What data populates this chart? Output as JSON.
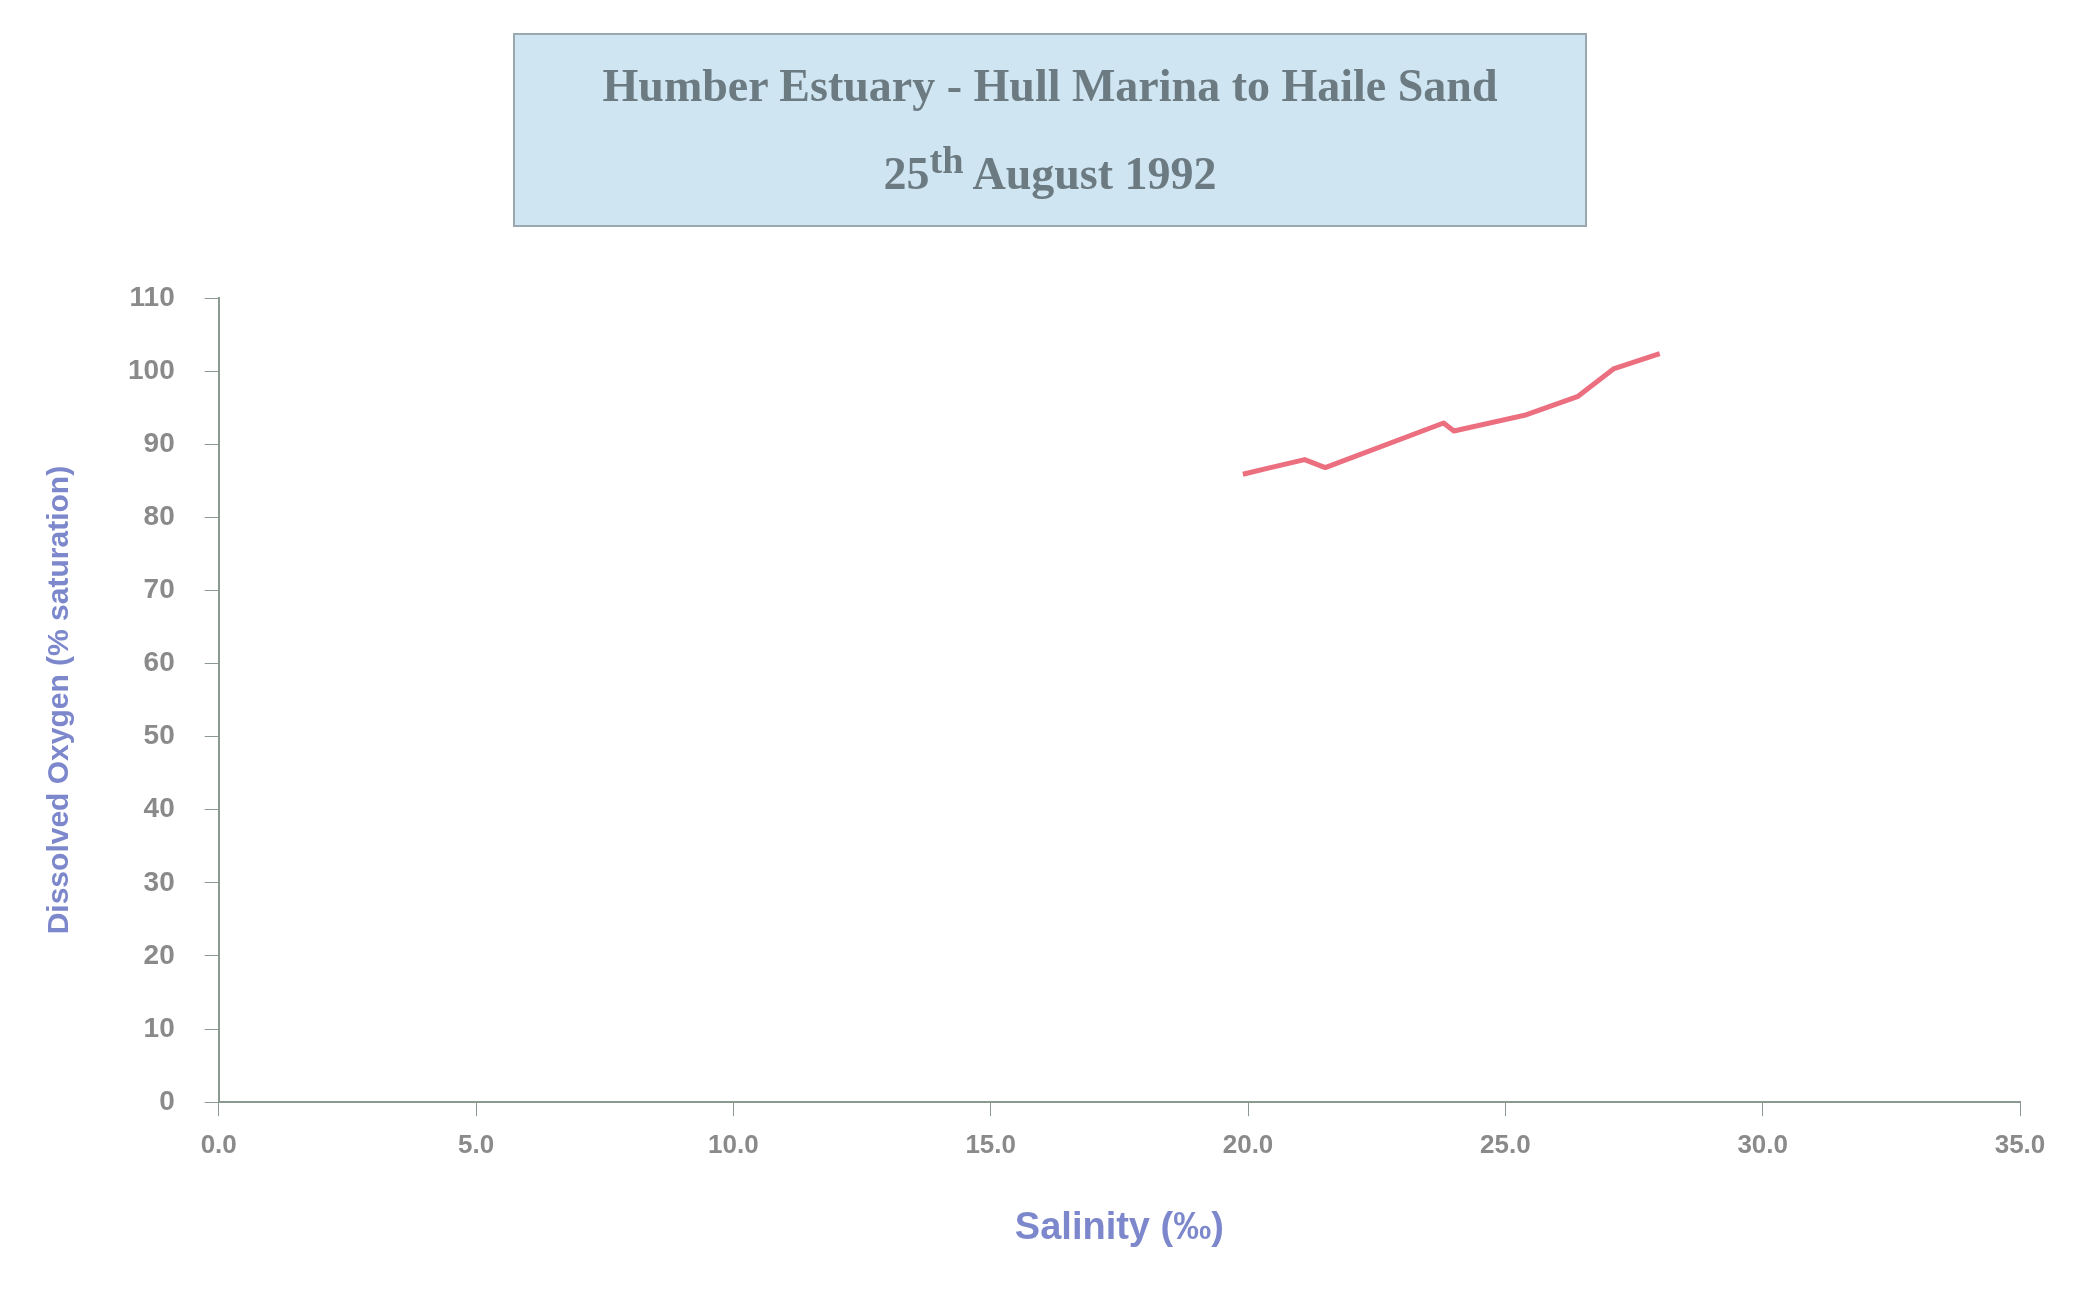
{
  "chart_data": {
    "type": "line",
    "title": "Humber Estuary - Hull Marina to Haile Sand\n25$^{th}$ August 1992",
    "xlabel": "Salinity (‰)",
    "ylabel": "Dissolved Oxygen (% saturation)",
    "x": [
      19.9,
      21.1,
      21.5,
      23.8,
      24.0,
      25.4,
      26.4,
      27.1,
      28.0
    ],
    "series": [
      {
        "color": "#ec6f80",
        "values": [
          85.9,
          87.9,
          86.8,
          92.9,
          91.8,
          94.0,
          96.5,
          100.3,
          102.4
        ]
      }
    ],
    "xlim": [
      0,
      35
    ],
    "xticks": [
      {
        "value": 0,
        "label": "0.0"
      },
      {
        "value": 5,
        "label": "5.0"
      },
      {
        "value": 10,
        "label": "10.0"
      },
      {
        "value": 15,
        "label": "15.0"
      },
      {
        "value": 20,
        "label": "20.0"
      },
      {
        "value": 25,
        "label": "25.0"
      },
      {
        "value": 30,
        "label": "30.0"
      },
      {
        "value": 35,
        "label": "35.0"
      }
    ],
    "ylim": [
      0,
      110
    ],
    "yticks": [
      0,
      10,
      20,
      30,
      40,
      50,
      60,
      70,
      80,
      90,
      100,
      110
    ],
    "grid": false,
    "legend": false,
    "marker": "none",
    "line_style": "solid"
  }
}
